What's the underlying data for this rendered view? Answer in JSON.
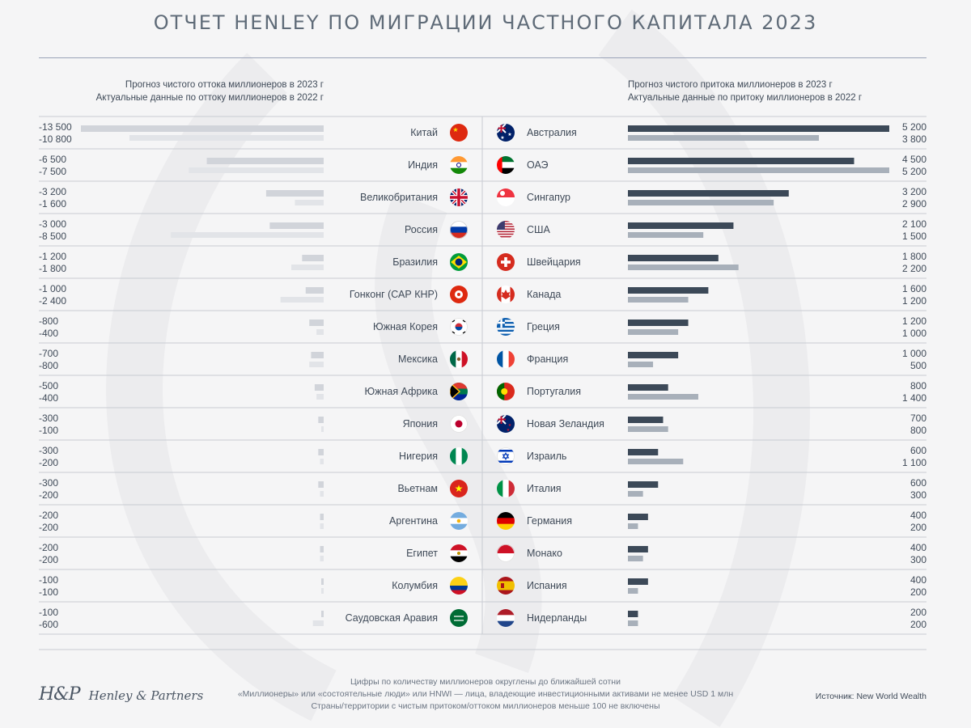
{
  "title": "ОТЧЕТ HENLEY ПО МИГРАЦИИ ЧАСТНОГО КАПИТАЛА 2023",
  "legend_left": {
    "line1": "Прогноз чистого оттока миллионеров в 2023 г",
    "line2": "Актуальные данные по оттоку миллионеров в 2022 г"
  },
  "legend_right": {
    "line1": "Прогноз чистого притока миллионеров в 2023 г",
    "line2": "Актуальные данные по притоку миллионеров в 2022 г"
  },
  "colors": {
    "outflow_2023": "#d1d4da",
    "outflow_2022": "#e2e4e8",
    "inflow_2023": "#3c4958",
    "inflow_2022": "#a8b0ba",
    "separator": "#c9ccd3"
  },
  "chart_data": [
    {
      "type": "bar",
      "title": "Отток миллионеров",
      "orientation": "horizontal",
      "direction": "leftward",
      "series": [
        {
          "name": "Прогноз 2023",
          "values": [
            -13500,
            -6500,
            -3200,
            -3000,
            -1200,
            -1000,
            -800,
            -700,
            -500,
            -300,
            -300,
            -300,
            -200,
            -200,
            -100,
            -100
          ]
        },
        {
          "name": "Данные 2022",
          "values": [
            -10800,
            -7500,
            -1600,
            -8500,
            -1800,
            -2400,
            -400,
            -800,
            -400,
            -100,
            -200,
            -200,
            -200,
            -200,
            -100,
            -600
          ]
        }
      ],
      "labels_2023": [
        "-13 500",
        "-6 500",
        "-3 200",
        "-3 000",
        "-1 200",
        "-1 000",
        "-800",
        "-700",
        "-500",
        "-300",
        "-300",
        "-300",
        "-200",
        "-200",
        "-100",
        "-100"
      ],
      "labels_2022": [
        "-10 800",
        "-7 500",
        "-1 600",
        "-8 500",
        "-1 800",
        "-2 400",
        "-400",
        "-800",
        "-400",
        "-100",
        "-200",
        "-200",
        "-200",
        "-200",
        "-100",
        "-600"
      ],
      "categories": [
        "Китай",
        "Индия",
        "Великобритания",
        "Россия",
        "Бразилия",
        "Гонконг (САР КНР)",
        "Южная Корея",
        "Мексика",
        "Южная Африка",
        "Япония",
        "Нигерия",
        "Вьетнам",
        "Аргентина",
        "Египет",
        "Колумбия",
        "Саудовская Аравия"
      ],
      "flags": [
        "china-flag-icon",
        "india-flag-icon",
        "uk-flag-icon",
        "russia-flag-icon",
        "brazil-flag-icon",
        "hongkong-flag-icon",
        "southkorea-flag-icon",
        "mexico-flag-icon",
        "southafrica-flag-icon",
        "japan-flag-icon",
        "nigeria-flag-icon",
        "vietnam-flag-icon",
        "argentina-flag-icon",
        "egypt-flag-icon",
        "colombia-flag-icon",
        "saudiarabia-flag-icon"
      ],
      "xlim": [
        -13500,
        0
      ]
    },
    {
      "type": "bar",
      "title": "Приток миллионеров",
      "orientation": "horizontal",
      "direction": "rightward",
      "series": [
        {
          "name": "Прогноз 2023",
          "values": [
            5200,
            4500,
            3200,
            2100,
            1800,
            1600,
            1200,
            1000,
            800,
            700,
            600,
            600,
            400,
            400,
            400,
            200
          ]
        },
        {
          "name": "Данные 2022",
          "values": [
            3800,
            5200,
            2900,
            1500,
            2200,
            1200,
            1000,
            500,
            1400,
            800,
            1100,
            300,
            200,
            300,
            200,
            200
          ]
        }
      ],
      "labels_2023": [
        "5 200",
        "4 500",
        "3 200",
        "2 100",
        "1 800",
        "1 600",
        "1 200",
        "1 000",
        "800",
        "700",
        "600",
        "600",
        "400",
        "400",
        "400",
        "200"
      ],
      "labels_2022": [
        "3 800",
        "5 200",
        "2 900",
        "1 500",
        "2 200",
        "1 200",
        "1 000",
        "500",
        "1 400",
        "800",
        "1 100",
        "300",
        "200",
        "300",
        "200",
        "200"
      ],
      "categories": [
        "Австралия",
        "ОАЭ",
        "Сингапур",
        "США",
        "Швейцария",
        "Канада",
        "Греция",
        "Франция",
        "Португалия",
        "Новая Зеландия",
        "Израиль",
        "Италия",
        "Германия",
        "Монако",
        "Испания",
        "Нидерланды"
      ],
      "flags": [
        "australia-flag-icon",
        "uae-flag-icon",
        "singapore-flag-icon",
        "usa-flag-icon",
        "switzerland-flag-icon",
        "canada-flag-icon",
        "greece-flag-icon",
        "france-flag-icon",
        "portugal-flag-icon",
        "newzealand-flag-icon",
        "israel-flag-icon",
        "italy-flag-icon",
        "germany-flag-icon",
        "monaco-flag-icon",
        "spain-flag-icon",
        "netherlands-flag-icon"
      ],
      "xlim": [
        0,
        5200
      ]
    }
  ],
  "footnote": {
    "line1": "Цифры по количеству миллионеров округлены до ближайшей сотни",
    "line2": "«Миллионеры» или «состоятельные люди» или HNWI — лица, владеющие инвестиционными активами не менее USD 1 млн",
    "line3": "Страны/территории с чистым притоком/оттоком миллионеров меньше 100 не включены"
  },
  "logo": {
    "monogram": "H&P",
    "name": "Henley & Partners"
  },
  "source": "Источник: New World Wealth"
}
